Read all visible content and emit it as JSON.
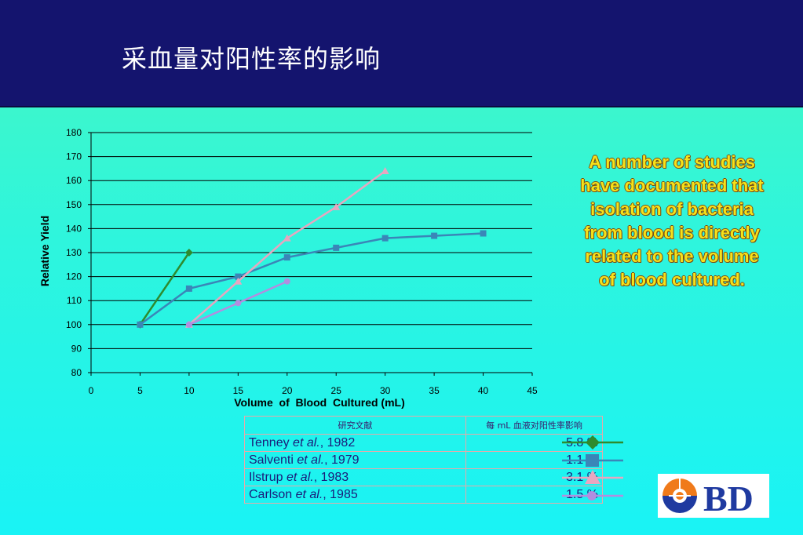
{
  "slide": {
    "title": "采血量对阳性率的影响"
  },
  "annotation": {
    "lines": [
      "A number of studies",
      "have documented that",
      "isolation of bacteria",
      "from blood is directly",
      "related to the volume",
      "of blood cultured."
    ]
  },
  "chart_data": {
    "type": "line",
    "xlabel": "Volume  of  Blood  Cultured (mL)",
    "ylabel": "Relative Yield",
    "xlim": [
      0,
      45
    ],
    "ylim": [
      80,
      180
    ],
    "xticks": [
      0,
      5,
      10,
      15,
      20,
      25,
      30,
      35,
      40,
      45
    ],
    "yticks": [
      80,
      90,
      100,
      110,
      120,
      130,
      140,
      150,
      160,
      170,
      180
    ],
    "grid": "horizontal",
    "series": [
      {
        "color": "#2e8b2e",
        "marker": "diamond",
        "x": [
          5,
          10
        ],
        "y": [
          100,
          130
        ]
      },
      {
        "color": "#3a86b8",
        "marker": "square",
        "x": [
          5,
          10,
          15,
          20,
          25,
          30,
          35,
          40
        ],
        "y": [
          100,
          115,
          120,
          128,
          132,
          136,
          137,
          138
        ]
      },
      {
        "color": "#e8a6c0",
        "marker": "triangle",
        "x": [
          10,
          15,
          20,
          25,
          30
        ],
        "y": [
          100,
          118,
          136,
          149,
          164
        ]
      },
      {
        "color": "#b38de0",
        "marker": "circle",
        "x": [
          10,
          15,
          20
        ],
        "y": [
          100,
          109,
          118
        ]
      }
    ]
  },
  "legend_table": {
    "header_study": "研究文献",
    "header_rate": "每 mL 血液对阳性率影响",
    "rows": [
      {
        "author": "Tenney ",
        "etal": "et al.",
        "year": ", 1982",
        "rate": "5.8 %",
        "color": "#2e8b2e",
        "marker": "diamond"
      },
      {
        "author": "Salventi ",
        "etal": "et al.",
        "year": ", 1979",
        "rate": "1.1 %",
        "color": "#3a86b8",
        "marker": "square"
      },
      {
        "author": "Ilstrup ",
        "etal": "et al.",
        "year": ", 1983",
        "rate": "3.1 %",
        "color": "#e8a6c0",
        "marker": "triangle"
      },
      {
        "author": "Carlson ",
        "etal": "et al.",
        "year": ", 1985",
        "rate": "1.5 %",
        "color": "#b38de0",
        "marker": "circle"
      }
    ]
  },
  "logo": {
    "text": "BD"
  }
}
